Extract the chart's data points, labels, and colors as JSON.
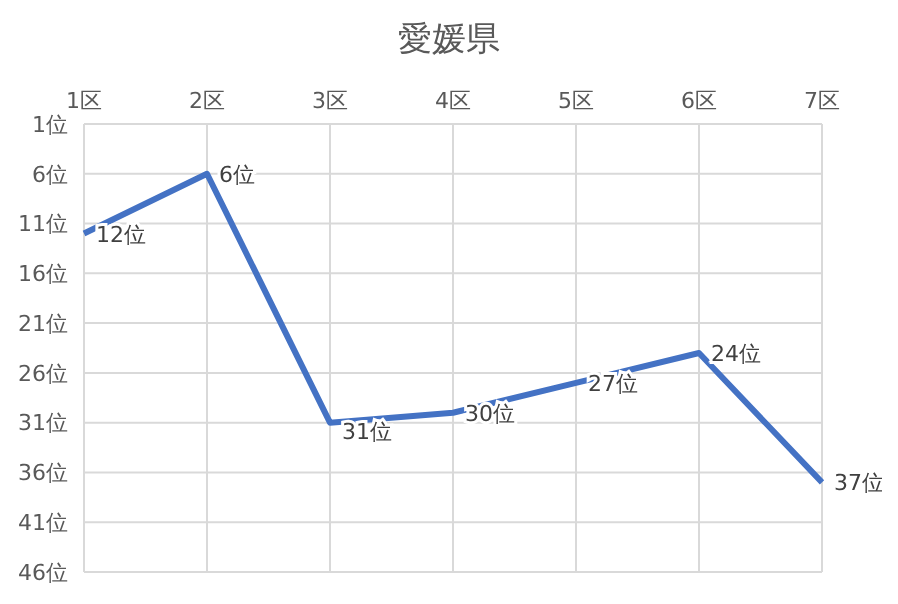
{
  "chart_data": {
    "type": "line",
    "title": "愛媛県",
    "categories": [
      "1区",
      "2区",
      "3区",
      "4区",
      "5区",
      "6区",
      "7区"
    ],
    "series": [
      {
        "color": "#4472c4",
        "values": [
          12,
          6,
          31,
          30,
          27,
          24,
          37
        ],
        "value_labels": [
          "12位",
          "6位",
          "31位",
          "30位",
          "27位",
          "24位",
          "37位"
        ]
      }
    ],
    "ylim": [
      46,
      1
    ],
    "yticks": [
      {
        "value": 1,
        "label": "1位"
      },
      {
        "value": 6,
        "label": "6位"
      },
      {
        "value": 11,
        "label": "11位"
      },
      {
        "value": 16,
        "label": "16位"
      },
      {
        "value": 21,
        "label": "21位"
      },
      {
        "value": 26,
        "label": "26位"
      },
      {
        "value": 31,
        "label": "31位"
      },
      {
        "value": 36,
        "label": "36位"
      },
      {
        "value": 41,
        "label": "41位"
      },
      {
        "value": 46,
        "label": "46位"
      }
    ],
    "grid": true,
    "marker": "none",
    "line_style": "solid",
    "legend": false
  }
}
